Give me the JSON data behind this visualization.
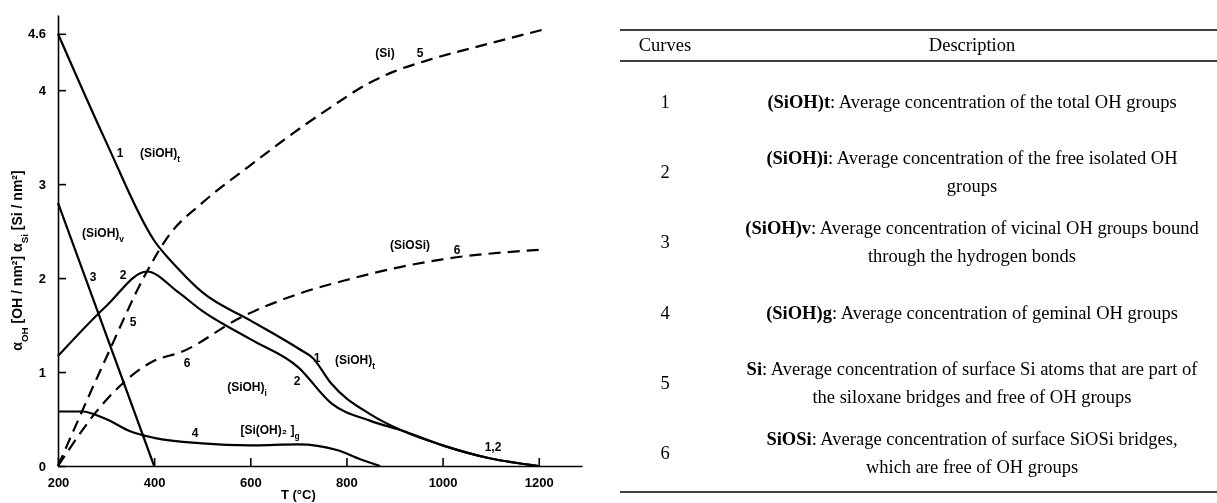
{
  "chart_data": {
    "type": "line",
    "xlabel": "T (°C)",
    "ylabel": "α$_{OH}$  [OH / nm²]     α$_{Si}$  [Si / nm²]",
    "xlim": [
      200,
      1290
    ],
    "xticks": [
      200,
      400,
      600,
      800,
      1000,
      1200
    ],
    "ylim": [
      0,
      4.8
    ],
    "yticks": [
      0,
      1,
      2,
      3,
      4,
      4.6
    ],
    "series": [
      {
        "color": "#000000",
        "line_style": "solid",
        "x": [
          200,
          300,
          400,
          450,
          500,
          600,
          700,
          730,
          768,
          850,
          914,
          1000,
          1100,
          1200
        ],
        "values": [
          4.6,
          3.45,
          2.4,
          2.1,
          1.85,
          1.55,
          1.25,
          1.15,
          0.88,
          0.55,
          0.38,
          0.22,
          0.08,
          0
        ]
      },
      {
        "color": "#000000",
        "line_style": "solid",
        "x": [
          200,
          300,
          385,
          450,
          500,
          600,
          700,
          768,
          850,
          914,
          1000,
          1100,
          1200
        ],
        "values": [
          1.17,
          1.7,
          2.07,
          1.85,
          1.65,
          1.35,
          1.05,
          0.67,
          0.48,
          0.38,
          0.22,
          0.08,
          0
        ]
      },
      {
        "color": "#000000",
        "line_style": "solid",
        "x": [
          200,
          400
        ],
        "values": [
          2.8,
          0
        ]
      },
      {
        "color": "#000000",
        "line_style": "solid",
        "x": [
          200,
          250,
          300,
          350,
          400,
          500,
          600,
          700,
          780,
          830,
          870
        ],
        "values": [
          0.58,
          0.58,
          0.5,
          0.37,
          0.3,
          0.24,
          0.22,
          0.23,
          0.17,
          0.07,
          0
        ]
      },
      {
        "color": "#000000",
        "line_style": "dashed",
        "x": [
          200,
          300,
          385,
          430,
          500,
          600,
          705,
          768,
          845,
          900,
          970,
          1100,
          1206
        ],
        "values": [
          0,
          1.15,
          2.07,
          2.45,
          2.8,
          3.2,
          3.6,
          3.82,
          4.07,
          4.2,
          4.32,
          4.5,
          4.64
        ]
      },
      {
        "color": "#000000",
        "line_style": "dashed",
        "x": [
          200,
          300,
          400,
          455,
          580,
          705,
          800,
          914,
          1000,
          1200
        ],
        "values": [
          0,
          0.7,
          1.12,
          1.21,
          1.58,
          1.84,
          1.98,
          2.12,
          2.2,
          2.3
        ]
      }
    ],
    "annotations": [
      "1",
      "(SiOH)$_{t}$",
      "(SiOH)$_{v}$",
      "3",
      "2",
      "5",
      "6",
      "4",
      "[Si(OH)₂ ]$_{g}$",
      "(SiOH)$_{i}$",
      "1",
      "2",
      "(SiOH)$_{t}$",
      "1,2",
      "(Si)",
      "5",
      "(SiOSi)",
      "6",
      "Curves",
      "Description",
      "1",
      "(SiOH)t: Average concentration of the total OH groups",
      "2",
      "(SiOH)i: Average concentration of the free isolated OH groups",
      "3",
      "(SiOH)v: Average concentration of vicinal OH groups bound through the hydrogen bonds",
      "4",
      "(SiOH)g: Average concentration of geminal OH groups",
      "5",
      "Si: Average concentration of surface Si atoms that are part of the siloxane bridges and free of OH groups",
      "6",
      "SiOSi: Average concentration of surface SiOSi bridges, which are free of OH groups"
    ]
  }
}
